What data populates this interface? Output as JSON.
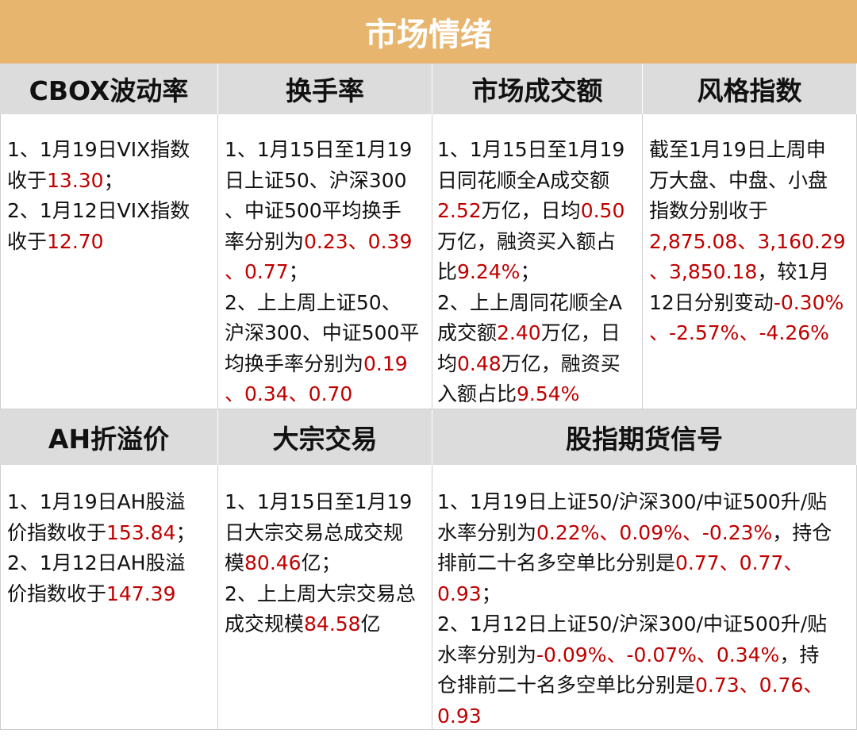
{
  "title": "市场情绪",
  "headers_row1": [
    "CBOX波动率",
    "换手率",
    "市场成交额",
    "风格指数"
  ],
  "headers_row2": [
    "AH折溢价",
    "大宗交易",
    "股指期货信号"
  ],
  "colors": {
    "title_bg": "#e8b56e",
    "header_bg": "#dcdcdc",
    "highlight": "#c00000"
  },
  "cells": {
    "cbox": [
      [
        {
          "t": "1、1月19日VIX指数"
        }
      ],
      [
        {
          "t": "收于"
        },
        {
          "t": "13.30",
          "r": true
        },
        {
          "t": "；"
        }
      ],
      [
        {
          "t": "2、1月12日VIX指数"
        }
      ],
      [
        {
          "t": "收于"
        },
        {
          "t": "12.70",
          "r": true
        }
      ]
    ],
    "turnover": [
      [
        {
          "t": "1、1月15日至1月19"
        }
      ],
      [
        {
          "t": "日上证50、沪深300"
        }
      ],
      [
        {
          "t": "、中证500平均换手"
        }
      ],
      [
        {
          "t": "率分别为"
        },
        {
          "t": "0.23、0.39",
          "r": true
        }
      ],
      [
        {
          "t": "、0.77",
          "r": true
        },
        {
          "t": "；"
        }
      ],
      [
        {
          "t": "2、上上周上证50、"
        }
      ],
      [
        {
          "t": "沪深300、中证500平"
        }
      ],
      [
        {
          "t": "均换手率分别为"
        },
        {
          "t": "0.19",
          "r": true
        }
      ],
      [
        {
          "t": "、0.34、0.70",
          "r": true
        }
      ]
    ],
    "volume": [
      [
        {
          "t": "1、1月15日至1月19"
        }
      ],
      [
        {
          "t": "日同花顺全A成交额"
        }
      ],
      [
        {
          "t": "2.52",
          "r": true
        },
        {
          "t": "万亿，日均"
        },
        {
          "t": "0.50",
          "r": true
        }
      ],
      [
        {
          "t": "万亿，融资买入额占"
        }
      ],
      [
        {
          "t": "比"
        },
        {
          "t": "9.24%",
          "r": true
        },
        {
          "t": "；"
        }
      ],
      [
        {
          "t": "2、上上周同花顺全A"
        }
      ],
      [
        {
          "t": "成交额"
        },
        {
          "t": "2.40",
          "r": true
        },
        {
          "t": "万亿，日"
        }
      ],
      [
        {
          "t": "均"
        },
        {
          "t": "0.48",
          "r": true
        },
        {
          "t": "万亿，融资买"
        }
      ],
      [
        {
          "t": "入额占比"
        },
        {
          "t": "9.54%",
          "r": true
        }
      ]
    ],
    "style": [
      [
        {
          "t": "截至1月19日上周申"
        }
      ],
      [
        {
          "t": "万大盘、中盘、小盘"
        }
      ],
      [
        {
          "t": "指数分别收于"
        }
      ],
      [
        {
          "t": "2,875.08、3,160.29",
          "r": true
        }
      ],
      [
        {
          "t": "、3,850.18",
          "r": true
        },
        {
          "t": "，较1月"
        }
      ],
      [
        {
          "t": "12日分别变动"
        },
        {
          "t": "-0.30%",
          "r": true
        }
      ],
      [
        {
          "t": "、-2.57%、-4.26%",
          "r": true
        }
      ]
    ],
    "ah": [
      [
        {
          "t": "1、1月19日AH股溢"
        }
      ],
      [
        {
          "t": "价指数收于"
        },
        {
          "t": "153.84",
          "r": true
        },
        {
          "t": "；"
        }
      ],
      [
        {
          "t": "2、1月12日AH股溢"
        }
      ],
      [
        {
          "t": "价指数收于"
        },
        {
          "t": "147.39",
          "r": true
        }
      ]
    ],
    "block": [
      [
        {
          "t": "1、1月15日至1月19"
        }
      ],
      [
        {
          "t": "日大宗交易总成交规"
        }
      ],
      [
        {
          "t": "模"
        },
        {
          "t": "80.46",
          "r": true
        },
        {
          "t": "亿；"
        }
      ],
      [
        {
          "t": "2、上上周大宗交易总"
        }
      ],
      [
        {
          "t": "成交规模"
        },
        {
          "t": "84.58",
          "r": true
        },
        {
          "t": "亿"
        }
      ]
    ],
    "futures": [
      [
        {
          "t": "1、1月19日上证50/沪深300/中证500升/贴"
        }
      ],
      [
        {
          "t": "水率分别为"
        },
        {
          "t": "0.22%、0.09%、-0.23%",
          "r": true
        },
        {
          "t": "，持仓"
        }
      ],
      [
        {
          "t": "排前二十名多空单比分别是"
        },
        {
          "t": "0.77、0.77、",
          "r": true
        }
      ],
      [
        {
          "t": "0.93",
          "r": true
        },
        {
          "t": "；"
        }
      ],
      [
        {
          "t": "2、1月12日上证50/沪深300/中证500升/贴"
        }
      ],
      [
        {
          "t": "水率分别为"
        },
        {
          "t": "-0.09%、-0.07%、0.34%",
          "r": true
        },
        {
          "t": "，持"
        }
      ],
      [
        {
          "t": "仓排前二十名多空单比分别是"
        },
        {
          "t": "0.73、0.76、",
          "r": true
        }
      ],
      [
        {
          "t": "0.93",
          "r": true
        }
      ]
    ]
  }
}
